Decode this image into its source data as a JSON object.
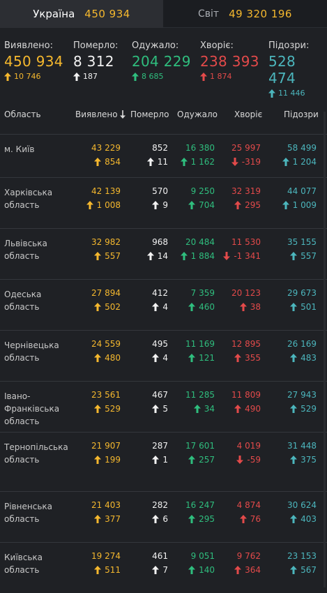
{
  "tabs": {
    "ukraine": {
      "label": "Україна",
      "value": "450 934"
    },
    "world": {
      "label": "Світ",
      "value": "49 320 196"
    }
  },
  "summary": [
    {
      "label": "Виявлено:",
      "value": "450 934",
      "delta": "10 746",
      "color": "#f5b82e",
      "dir": "up"
    },
    {
      "label": "Померло:",
      "value": "8 312",
      "delta": "187",
      "color": "#f2f2f2",
      "dir": "up"
    },
    {
      "label": "Одужало:",
      "value": "204 229",
      "delta": "8 685",
      "color": "#2fbe7e",
      "dir": "up"
    },
    {
      "label": "Хворіє:",
      "value": "238 393",
      "delta": "1 874",
      "color": "#e34a4a",
      "dir": "up"
    },
    {
      "label": "Підозри:",
      "value": "528 474",
      "delta": "11 446",
      "color": "#4cb6bd",
      "dir": "up"
    }
  ],
  "table": {
    "headers": {
      "region": "Область",
      "confirmed": "Виявлено",
      "deaths": "Померло",
      "recovered": "Одужало",
      "sick": "Хворіє",
      "suspected": "Підозри"
    },
    "sort_icon": "arrow-down-icon",
    "rows": [
      {
        "region": "м. Київ",
        "confirmed": "43 229",
        "confirmed_d": "854",
        "deaths": "852",
        "deaths_d": "11",
        "recovered": "16 380",
        "recovered_d": "1 162",
        "sick": "25 997",
        "sick_d": "-319",
        "sick_dir": "down",
        "suspected": "58 499",
        "suspected_d": "1 204"
      },
      {
        "region": "Харківська область",
        "confirmed": "42 139",
        "confirmed_d": "1 008",
        "deaths": "570",
        "deaths_d": "9",
        "recovered": "9 250",
        "recovered_d": "704",
        "sick": "32 319",
        "sick_d": "295",
        "sick_dir": "up",
        "suspected": "44 077",
        "suspected_d": "1 009"
      },
      {
        "region": "Львівська область",
        "confirmed": "32 982",
        "confirmed_d": "557",
        "deaths": "968",
        "deaths_d": "14",
        "recovered": "20 484",
        "recovered_d": "1 884",
        "sick": "11 530",
        "sick_d": "-1 341",
        "sick_dir": "down",
        "suspected": "35 155",
        "suspected_d": "557"
      },
      {
        "region": "Одеська область",
        "confirmed": "27 894",
        "confirmed_d": "502",
        "deaths": "412",
        "deaths_d": "4",
        "recovered": "7 359",
        "recovered_d": "460",
        "sick": "20 123",
        "sick_d": "38",
        "sick_dir": "up",
        "suspected": "29 673",
        "suspected_d": "501"
      },
      {
        "region": "Чернівецька область",
        "confirmed": "24 559",
        "confirmed_d": "480",
        "deaths": "495",
        "deaths_d": "4",
        "recovered": "11 169",
        "recovered_d": "121",
        "sick": "12 895",
        "sick_d": "355",
        "sick_dir": "up",
        "suspected": "26 169",
        "suspected_d": "483"
      },
      {
        "region": "Івано-Франківська область",
        "confirmed": "23 561",
        "confirmed_d": "529",
        "deaths": "467",
        "deaths_d": "5",
        "recovered": "11 285",
        "recovered_d": "34",
        "sick": "11 809",
        "sick_d": "490",
        "sick_dir": "up",
        "suspected": "27 943",
        "suspected_d": "529"
      },
      {
        "region": "Тернопільська область",
        "confirmed": "21 907",
        "confirmed_d": "199",
        "deaths": "287",
        "deaths_d": "1",
        "recovered": "17 601",
        "recovered_d": "257",
        "sick": "4 019",
        "sick_d": "-59",
        "sick_dir": "down",
        "suspected": "31 448",
        "suspected_d": "375"
      },
      {
        "region": "Рівненська область",
        "confirmed": "21 403",
        "confirmed_d": "377",
        "deaths": "282",
        "deaths_d": "6",
        "recovered": "16 247",
        "recovered_d": "295",
        "sick": "4 874",
        "sick_d": "76",
        "sick_dir": "up",
        "suspected": "30 624",
        "suspected_d": "403"
      },
      {
        "region": "Київська область",
        "confirmed": "19 274",
        "confirmed_d": "511",
        "deaths": "461",
        "deaths_d": "7",
        "recovered": "9 051",
        "recovered_d": "140",
        "sick": "9 762",
        "sick_d": "364",
        "sick_dir": "up",
        "suspected": "23 153",
        "suspected_d": "567"
      }
    ]
  }
}
